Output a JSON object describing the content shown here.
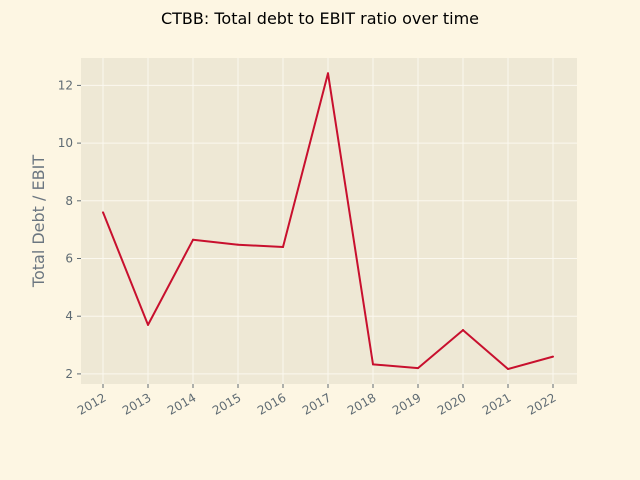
{
  "chart_data": {
    "type": "line",
    "title": "CTBB: Total debt to EBIT ratio over time",
    "xlabel": "",
    "ylabel": "Total Debt / EBIT",
    "x": [
      "2012",
      "2013",
      "2014",
      "2015",
      "2016",
      "2017",
      "2018",
      "2019",
      "2020",
      "2021",
      "2022"
    ],
    "series": [
      {
        "values": [
          7.6,
          3.7,
          6.65,
          6.48,
          6.4,
          12.42,
          2.33,
          2.2,
          3.52,
          2.17,
          2.6
        ],
        "color": "#c8102e"
      }
    ],
    "yticks": [
      2,
      4,
      6,
      8,
      10,
      12
    ],
    "ylim": [
      1.65,
      12.95
    ],
    "grid": true,
    "legend": "none",
    "colors": {
      "figure_bg": "#fdf6e3",
      "plot_bg": "#eee8d5",
      "grid": "#fbf8ef",
      "text": "#5f6b73"
    }
  }
}
